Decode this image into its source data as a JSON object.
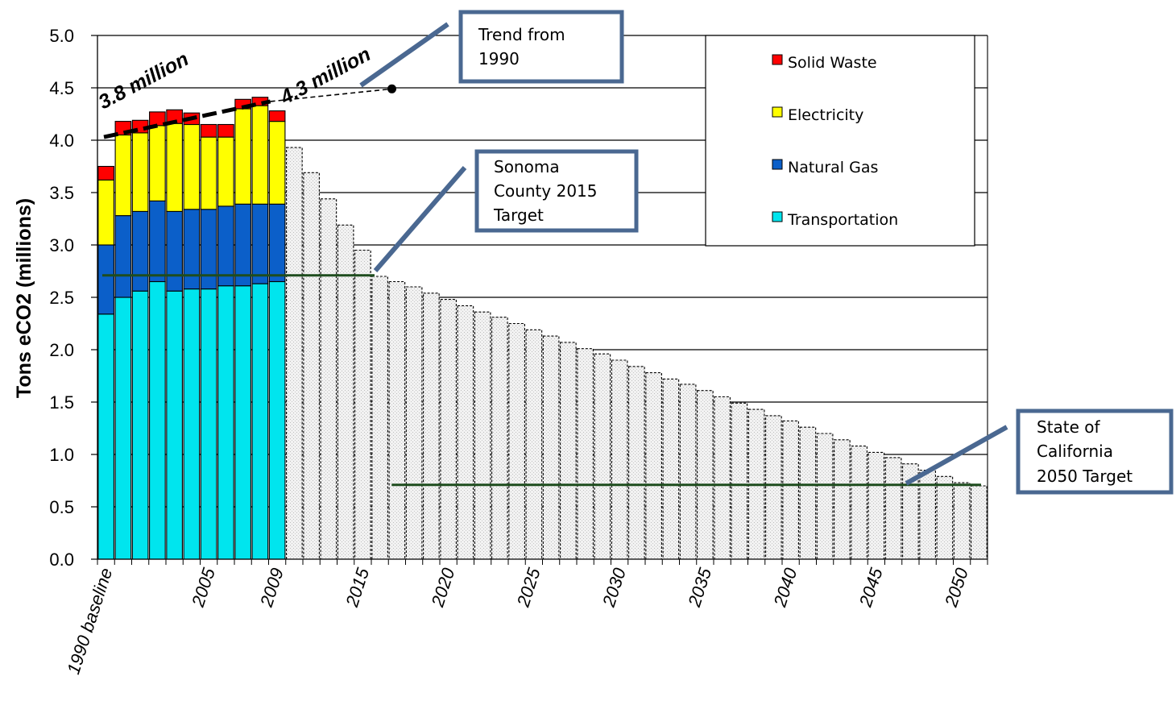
{
  "chart_data": {
    "type": "bar",
    "stacked": true,
    "ylabel": "Tons eCO2 (millions)",
    "ylim": [
      0,
      5
    ],
    "y_ticks": [
      "0.0",
      "0.5",
      "1.0",
      "1.5",
      "2.0",
      "2.5",
      "3.0",
      "3.5",
      "4.0",
      "4.5",
      "5.0"
    ],
    "grid": true,
    "x_tick_labels": [
      "1990 baseline",
      "2005",
      "2009",
      "2015",
      "2020",
      "2025",
      "2030",
      "2035",
      "2040",
      "2045",
      "2050"
    ],
    "historical": {
      "categories": [
        "1990 baseline",
        "2000",
        "2001",
        "2002",
        "2003",
        "2004",
        "2005",
        "2006",
        "2007",
        "2008",
        "2009"
      ],
      "series": [
        {
          "name": "Transportation",
          "color": "#00e5ee",
          "values": [
            2.34,
            2.5,
            2.56,
            2.65,
            2.56,
            2.58,
            2.58,
            2.61,
            2.61,
            2.63,
            2.65
          ]
        },
        {
          "name": "Natural Gas",
          "color": "#0b5fc9",
          "values": [
            0.66,
            0.78,
            0.76,
            0.77,
            0.76,
            0.76,
            0.76,
            0.76,
            0.78,
            0.76,
            0.74
          ]
        },
        {
          "name": "Electricity",
          "color": "#ffff00",
          "values": [
            0.62,
            0.77,
            0.75,
            0.72,
            0.84,
            0.81,
            0.69,
            0.66,
            0.91,
            0.94,
            0.79
          ]
        },
        {
          "name": "Solid Waste",
          "color": "#ff0000",
          "values": [
            0.13,
            0.13,
            0.12,
            0.13,
            0.13,
            0.11,
            0.12,
            0.12,
            0.09,
            0.08,
            0.1
          ]
        }
      ]
    },
    "projection": {
      "x": [
        2010,
        2011,
        2012,
        2013,
        2014,
        2015,
        2016,
        2017,
        2018,
        2019,
        2020,
        2021,
        2022,
        2023,
        2024,
        2025,
        2026,
        2027,
        2028,
        2029,
        2030,
        2031,
        2032,
        2033,
        2034,
        2035,
        2036,
        2037,
        2038,
        2039,
        2040,
        2041,
        2042,
        2043,
        2044,
        2045,
        2046,
        2047,
        2048,
        2049,
        2050
      ],
      "values": [
        3.93,
        3.69,
        3.44,
        3.19,
        2.95,
        2.7,
        2.65,
        2.6,
        2.54,
        2.48,
        2.42,
        2.36,
        2.31,
        2.25,
        2.19,
        2.13,
        2.07,
        2.01,
        1.96,
        1.9,
        1.84,
        1.78,
        1.72,
        1.67,
        1.61,
        1.55,
        1.49,
        1.43,
        1.37,
        1.32,
        1.26,
        1.2,
        1.14,
        1.08,
        1.02,
        0.97,
        0.91,
        0.85,
        0.79,
        0.73,
        0.7
      ],
      "color": "#ececec"
    },
    "legend": {
      "placement": "top-right",
      "entries": [
        {
          "label": "Solid Waste",
          "color": "#ff0000"
        },
        {
          "label": "Electricity",
          "color": "#ffff00"
        },
        {
          "label": "Natural Gas",
          "color": "#0b5fc9"
        },
        {
          "label": "Transportation",
          "color": "#00e5ee"
        }
      ]
    },
    "annotations": {
      "trend_start_label": "3.8 million",
      "trend_end_label": "4.3 million",
      "trend_from_1990": [
        "Trend from",
        "1990"
      ],
      "sonoma_target": [
        "Sonoma",
        "County 2015",
        "Target"
      ],
      "sonoma_target_value": 2.71,
      "state_target": [
        "State of",
        "California",
        "2050 Target"
      ],
      "state_target_value": 0.71
    },
    "colors": {
      "callout_border": "#4a6891",
      "target_line": "#1e4d1e",
      "grid": "#000000"
    }
  }
}
